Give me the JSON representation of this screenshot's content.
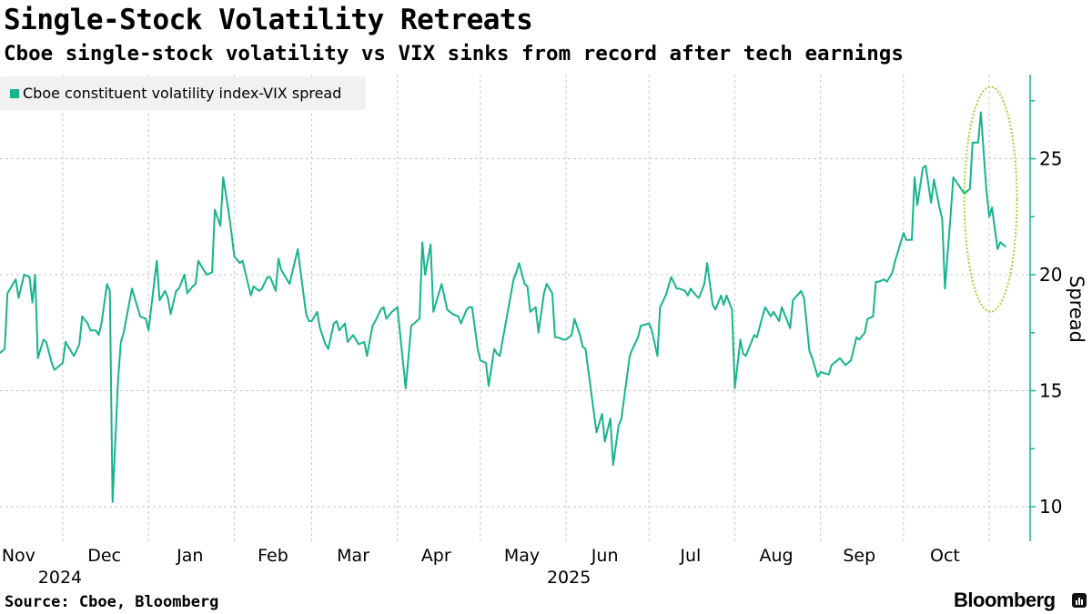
{
  "title": "Single-Stock Volatility Retreats",
  "subtitle": "Cboe single-stock volatility vs VIX sinks from record after tech earnings",
  "source": "Source: Cboe, Bloomberg",
  "brand": "Bloomberg",
  "colors": {
    "series": "#17b48c",
    "annotation": "#a3d13a",
    "grid": "#c8c8c8",
    "legend_bg": "#f1f1f1"
  },
  "chart_data": {
    "type": "line",
    "title": "Single-Stock Volatility Retreats",
    "ylabel": "Spread",
    "xlabel": "",
    "ylim": [
      8.5,
      28.5
    ],
    "yticks": [
      10,
      15,
      20,
      25
    ],
    "y_axis_side": "right",
    "grid": true,
    "legend_placement": "top-left",
    "x_tick_labels": [
      {
        "label": "Nov",
        "date": "2024-11-15"
      },
      {
        "label": "Dec",
        "date": "2024-12-16"
      },
      {
        "label": "Jan",
        "date": "2025-01-16"
      },
      {
        "label": "Feb",
        "date": "2025-02-15"
      },
      {
        "label": "Mar",
        "date": "2025-03-16"
      },
      {
        "label": "Apr",
        "date": "2025-04-15"
      },
      {
        "label": "May",
        "date": "2025-05-16"
      },
      {
        "label": "Jun",
        "date": "2025-06-15"
      },
      {
        "label": "Jul",
        "date": "2025-07-16"
      },
      {
        "label": "Aug",
        "date": "2025-08-16"
      },
      {
        "label": "Sep",
        "date": "2025-09-15"
      },
      {
        "label": "Oct",
        "date": "2025-10-16"
      }
    ],
    "year_labels": [
      {
        "label": "2024",
        "date": "2024-11-30"
      },
      {
        "label": "2025",
        "date": "2025-06-02"
      }
    ],
    "annotation": {
      "type": "dotted-ellipse",
      "date_range": [
        "2025-10-23",
        "2025-11-11"
      ],
      "value_range": [
        18.4,
        28.1
      ]
    },
    "series": [
      {
        "name": "Cboe constituent volatility index-VIX spread",
        "points": [
          [
            "2024-11-08",
            16.6
          ],
          [
            "2024-11-10",
            16.8
          ],
          [
            "2024-11-11",
            19.2
          ],
          [
            "2024-11-13",
            19.6
          ],
          [
            "2024-11-14",
            19.8
          ],
          [
            "2024-11-15",
            19.0
          ],
          [
            "2024-11-17",
            20.0
          ],
          [
            "2024-11-19",
            19.9
          ],
          [
            "2024-11-20",
            18.8
          ],
          [
            "2024-11-21",
            20.0
          ],
          [
            "2024-11-22",
            16.4
          ],
          [
            "2024-11-24",
            17.2
          ],
          [
            "2024-11-25",
            17.1
          ],
          [
            "2024-11-27",
            16.2
          ],
          [
            "2024-11-28",
            15.9
          ],
          [
            "2024-12-01",
            16.2
          ],
          [
            "2024-12-02",
            17.1
          ],
          [
            "2024-12-04",
            16.7
          ],
          [
            "2024-12-05",
            16.5
          ],
          [
            "2024-12-07",
            17.0
          ],
          [
            "2024-12-08",
            18.2
          ],
          [
            "2024-12-10",
            17.9
          ],
          [
            "2024-12-11",
            17.6
          ],
          [
            "2024-12-13",
            17.6
          ],
          [
            "2024-12-14",
            17.4
          ],
          [
            "2024-12-15",
            17.9
          ],
          [
            "2024-12-17",
            19.6
          ],
          [
            "2024-12-18",
            19.3
          ],
          [
            "2024-12-19",
            10.2
          ],
          [
            "2024-12-21",
            15.5
          ],
          [
            "2024-12-22",
            17.1
          ],
          [
            "2024-12-23",
            17.5
          ],
          [
            "2024-12-26",
            19.4
          ],
          [
            "2024-12-29",
            18.2
          ],
          [
            "2024-12-31",
            18.1
          ],
          [
            "2025-01-01",
            17.6
          ],
          [
            "2025-01-04",
            20.6
          ],
          [
            "2025-01-05",
            18.9
          ],
          [
            "2025-01-07",
            19.3
          ],
          [
            "2025-01-08",
            19.0
          ],
          [
            "2025-01-09",
            18.3
          ],
          [
            "2025-01-11",
            19.3
          ],
          [
            "2025-01-12",
            19.4
          ],
          [
            "2025-01-14",
            20.0
          ],
          [
            "2025-01-15",
            19.2
          ],
          [
            "2025-01-17",
            19.5
          ],
          [
            "2025-01-18",
            19.6
          ],
          [
            "2025-01-19",
            20.6
          ],
          [
            "2025-01-22",
            20.0
          ],
          [
            "2025-01-24",
            20.1
          ],
          [
            "2025-01-25",
            22.8
          ],
          [
            "2025-01-27",
            22.1
          ],
          [
            "2025-01-28",
            24.2
          ],
          [
            "2025-01-30",
            22.7
          ],
          [
            "2025-01-31",
            21.8
          ],
          [
            "2025-02-01",
            20.8
          ],
          [
            "2025-02-03",
            20.5
          ],
          [
            "2025-02-04",
            20.6
          ],
          [
            "2025-02-06",
            19.6
          ],
          [
            "2025-02-07",
            19.1
          ],
          [
            "2025-02-08",
            19.5
          ],
          [
            "2025-02-10",
            19.3
          ],
          [
            "2025-02-11",
            19.4
          ],
          [
            "2025-02-13",
            19.9
          ],
          [
            "2025-02-14",
            19.9
          ],
          [
            "2025-02-16",
            19.3
          ],
          [
            "2025-02-17",
            20.7
          ],
          [
            "2025-02-18",
            20.2
          ],
          [
            "2025-02-20",
            19.8
          ],
          [
            "2025-02-21",
            19.6
          ],
          [
            "2025-02-22",
            20.1
          ],
          [
            "2025-02-24",
            21.1
          ],
          [
            "2025-02-25",
            20.1
          ],
          [
            "2025-02-27",
            18.3
          ],
          [
            "2025-02-28",
            18.0
          ],
          [
            "2025-03-01",
            18.0
          ],
          [
            "2025-03-03",
            18.4
          ],
          [
            "2025-03-04",
            17.7
          ],
          [
            "2025-03-06",
            17.0
          ],
          [
            "2025-03-07",
            16.8
          ],
          [
            "2025-03-09",
            17.9
          ],
          [
            "2025-03-10",
            18.0
          ],
          [
            "2025-03-11",
            17.6
          ],
          [
            "2025-03-13",
            17.9
          ],
          [
            "2025-03-14",
            17.1
          ],
          [
            "2025-03-16",
            17.4
          ],
          [
            "2025-03-17",
            17.2
          ],
          [
            "2025-03-18",
            17.0
          ],
          [
            "2025-03-20",
            17.1
          ],
          [
            "2025-03-21",
            16.5
          ],
          [
            "2025-03-23",
            17.8
          ],
          [
            "2025-03-24",
            18.0
          ],
          [
            "2025-03-26",
            18.5
          ],
          [
            "2025-03-27",
            18.6
          ],
          [
            "2025-03-28",
            18.1
          ],
          [
            "2025-03-30",
            18.4
          ],
          [
            "2025-03-31",
            18.5
          ],
          [
            "2025-04-01",
            18.6
          ],
          [
            "2025-04-04",
            15.1
          ],
          [
            "2025-04-06",
            17.8
          ],
          [
            "2025-04-07",
            17.9
          ],
          [
            "2025-04-09",
            18.1
          ],
          [
            "2025-04-10",
            21.4
          ],
          [
            "2025-04-11",
            20.0
          ],
          [
            "2025-04-13",
            21.3
          ],
          [
            "2025-04-14",
            18.4
          ],
          [
            "2025-04-17",
            19.6
          ],
          [
            "2025-04-19",
            18.5
          ],
          [
            "2025-04-20",
            18.4
          ],
          [
            "2025-04-21",
            18.3
          ],
          [
            "2025-04-23",
            18.2
          ],
          [
            "2025-04-24",
            17.9
          ],
          [
            "2025-04-26",
            18.5
          ],
          [
            "2025-04-27",
            18.6
          ],
          [
            "2025-04-28",
            18.6
          ],
          [
            "2025-04-30",
            16.8
          ],
          [
            "2025-05-01",
            16.3
          ],
          [
            "2025-05-03",
            16.2
          ],
          [
            "2025-05-04",
            15.2
          ],
          [
            "2025-05-06",
            16.8
          ],
          [
            "2025-05-07",
            16.6
          ],
          [
            "2025-05-08",
            16.5
          ],
          [
            "2025-05-13",
            19.8
          ],
          [
            "2025-05-14",
            20.1
          ],
          [
            "2025-05-15",
            20.5
          ],
          [
            "2025-05-17",
            19.6
          ],
          [
            "2025-05-18",
            19.5
          ],
          [
            "2025-05-19",
            18.4
          ],
          [
            "2025-05-21",
            18.6
          ],
          [
            "2025-05-22",
            17.5
          ],
          [
            "2025-05-24",
            19.2
          ],
          [
            "2025-05-25",
            19.6
          ],
          [
            "2025-05-27",
            19.2
          ],
          [
            "2025-05-28",
            17.3
          ],
          [
            "2025-05-29",
            17.3
          ],
          [
            "2025-05-31",
            17.2
          ],
          [
            "2025-06-01",
            17.2
          ],
          [
            "2025-06-03",
            17.4
          ],
          [
            "2025-06-04",
            18.1
          ],
          [
            "2025-06-06",
            17.4
          ],
          [
            "2025-06-07",
            16.9
          ],
          [
            "2025-06-08",
            16.8
          ],
          [
            "2025-06-12",
            13.2
          ],
          [
            "2025-06-14",
            14.0
          ],
          [
            "2025-06-15",
            12.8
          ],
          [
            "2025-06-17",
            13.8
          ],
          [
            "2025-06-18",
            11.8
          ],
          [
            "2025-06-20",
            13.5
          ],
          [
            "2025-06-21",
            13.8
          ],
          [
            "2025-06-24",
            16.5
          ],
          [
            "2025-06-25",
            16.8
          ],
          [
            "2025-06-27",
            17.3
          ],
          [
            "2025-06-28",
            17.8
          ],
          [
            "2025-07-01",
            17.9
          ],
          [
            "2025-07-02",
            17.6
          ],
          [
            "2025-07-04",
            16.5
          ],
          [
            "2025-07-05",
            18.6
          ],
          [
            "2025-07-07",
            19.1
          ],
          [
            "2025-07-09",
            19.9
          ],
          [
            "2025-07-11",
            19.4
          ],
          [
            "2025-07-12",
            19.4
          ],
          [
            "2025-07-14",
            19.3
          ],
          [
            "2025-07-15",
            19.1
          ],
          [
            "2025-07-16",
            19.4
          ],
          [
            "2025-07-18",
            19.1
          ],
          [
            "2025-07-19",
            19.0
          ],
          [
            "2025-07-21",
            19.6
          ],
          [
            "2025-07-22",
            20.5
          ],
          [
            "2025-07-24",
            18.7
          ],
          [
            "2025-07-25",
            18.5
          ],
          [
            "2025-07-27",
            19.1
          ],
          [
            "2025-07-28",
            18.7
          ],
          [
            "2025-07-29",
            19.1
          ],
          [
            "2025-07-31",
            18.5
          ],
          [
            "2025-08-01",
            15.1
          ],
          [
            "2025-08-03",
            17.2
          ],
          [
            "2025-08-04",
            16.6
          ],
          [
            "2025-08-05",
            16.5
          ],
          [
            "2025-08-08",
            17.4
          ],
          [
            "2025-08-09",
            17.3
          ],
          [
            "2025-08-11",
            18.2
          ],
          [
            "2025-08-12",
            18.6
          ],
          [
            "2025-08-14",
            18.2
          ],
          [
            "2025-08-15",
            18.4
          ],
          [
            "2025-08-17",
            18.0
          ],
          [
            "2025-08-18",
            18.6
          ],
          [
            "2025-08-21",
            17.7
          ],
          [
            "2025-08-22",
            18.9
          ],
          [
            "2025-08-25",
            19.3
          ],
          [
            "2025-08-26",
            19.0
          ],
          [
            "2025-08-28",
            16.7
          ],
          [
            "2025-08-29",
            16.4
          ],
          [
            "2025-08-31",
            15.6
          ],
          [
            "2025-09-01",
            15.8
          ],
          [
            "2025-09-04",
            15.7
          ],
          [
            "2025-09-05",
            16.1
          ],
          [
            "2025-09-08",
            16.4
          ],
          [
            "2025-09-10",
            16.1
          ],
          [
            "2025-09-12",
            16.3
          ],
          [
            "2025-09-14",
            17.3
          ],
          [
            "2025-09-15",
            17.2
          ],
          [
            "2025-09-17",
            17.5
          ],
          [
            "2025-09-18",
            18.1
          ],
          [
            "2025-09-20",
            18.2
          ],
          [
            "2025-09-21",
            19.7
          ],
          [
            "2025-09-22",
            19.7
          ],
          [
            "2025-09-24",
            19.8
          ],
          [
            "2025-09-25",
            19.7
          ],
          [
            "2025-09-27",
            20.1
          ],
          [
            "2025-09-28",
            20.6
          ],
          [
            "2025-09-29",
            21.0
          ],
          [
            "2025-10-01",
            21.8
          ],
          [
            "2025-10-02",
            21.5
          ],
          [
            "2025-10-04",
            21.5
          ],
          [
            "2025-10-05",
            24.2
          ],
          [
            "2025-10-06",
            23.0
          ],
          [
            "2025-10-08",
            24.6
          ],
          [
            "2025-10-09",
            24.7
          ],
          [
            "2025-10-11",
            23.1
          ],
          [
            "2025-10-12",
            24.1
          ],
          [
            "2025-10-14",
            22.9
          ],
          [
            "2025-10-15",
            22.4
          ],
          [
            "2025-10-16",
            19.4
          ],
          [
            "2025-10-18",
            22.5
          ],
          [
            "2025-10-19",
            24.2
          ],
          [
            "2025-10-23",
            23.5
          ],
          [
            "2025-10-25",
            23.7
          ],
          [
            "2025-10-26",
            25.7
          ],
          [
            "2025-10-28",
            25.7
          ],
          [
            "2025-10-29",
            27.0
          ],
          [
            "2025-10-31",
            23.6
          ],
          [
            "2025-11-01",
            22.5
          ],
          [
            "2025-11-02",
            22.9
          ],
          [
            "2025-11-04",
            21.1
          ],
          [
            "2025-11-05",
            21.4
          ],
          [
            "2025-11-07",
            21.2
          ]
        ]
      }
    ]
  }
}
